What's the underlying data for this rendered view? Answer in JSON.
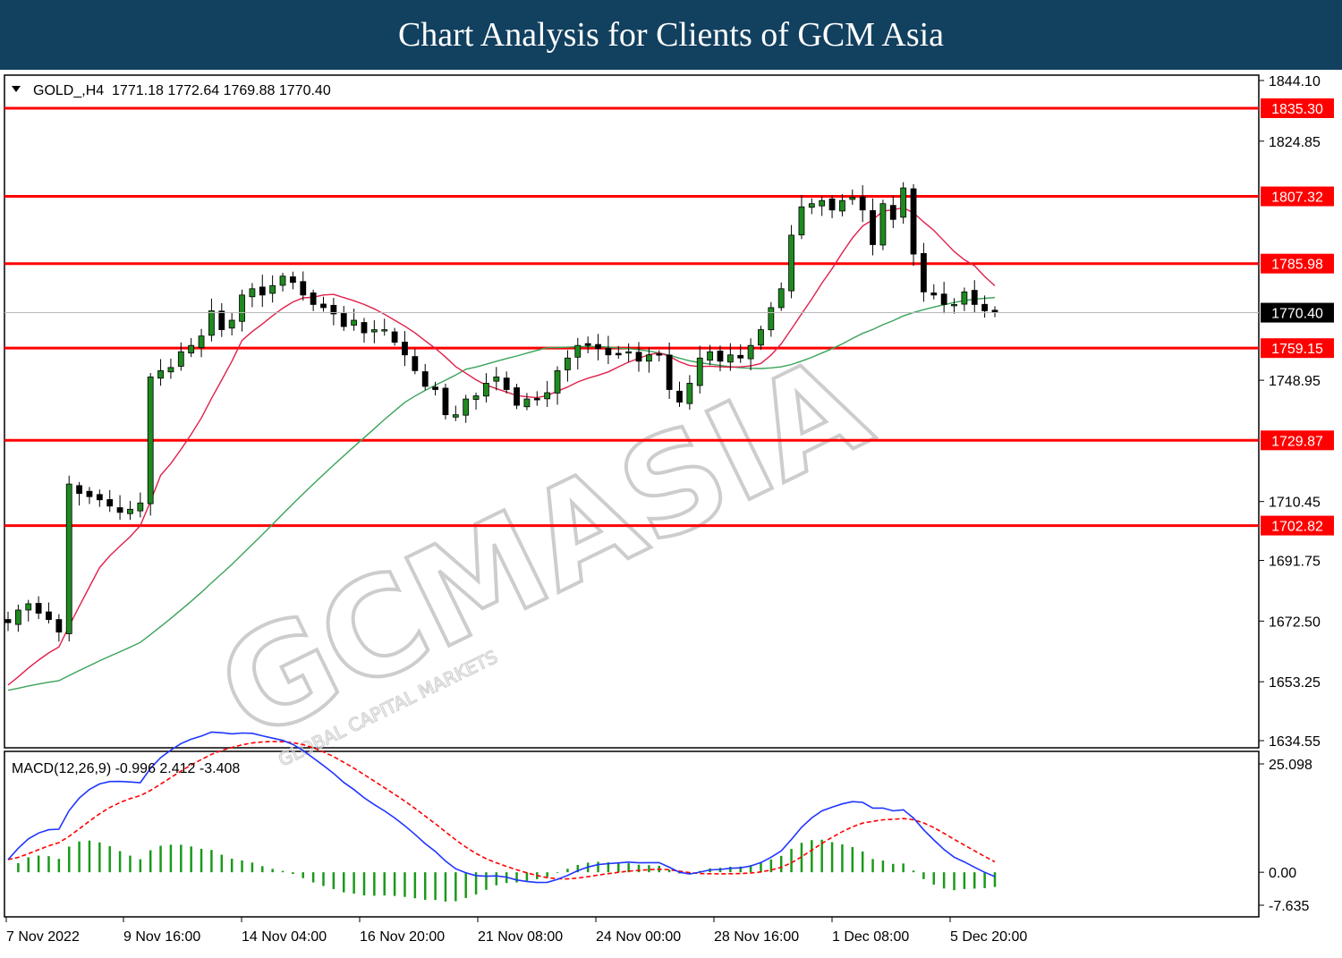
{
  "banner": {
    "title": "Chart Analysis for Clients of GCM Asia"
  },
  "watermark": {
    "main": "GCMASIA",
    "sub": "GLOBAL CAPITAL MARKETS"
  },
  "chart_data": [
    {
      "type": "candlestick",
      "symbol_info": "GOLD_,H4  1771.18 1772.64 1769.88 1770.40",
      "ohlc": {
        "open": 1771.18,
        "high": 1772.64,
        "low": 1769.88,
        "close": 1770.4
      },
      "last_price": "1770.40",
      "ylim": [
        1634.55,
        1844.1
      ],
      "y_ticks": [
        "1844.10",
        "1824.85",
        "1748.95",
        "1710.45",
        "1691.75",
        "1672.50",
        "1653.25",
        "1634.55"
      ],
      "x_ticks": [
        "7 Nov 2022",
        "9 Nov 16:00",
        "14 Nov 04:00",
        "16 Nov 20:00",
        "21 Nov 08:00",
        "24 Nov 00:00",
        "28 Nov 16:00",
        "1 Dec 08:00",
        "5 Dec 20:00"
      ],
      "levels": [
        "1835.30",
        "1807.32",
        "1785.98",
        "1759.15",
        "1729.87",
        "1702.82"
      ],
      "closes": [
        1672,
        1676,
        1678,
        1675,
        1673,
        1669,
        1716,
        1713,
        1712,
        1711,
        1709,
        1707,
        1708,
        1710,
        1750,
        1752,
        1753,
        1758,
        1760,
        1763,
        1771,
        1765,
        1768,
        1776,
        1778,
        1776,
        1779,
        1782,
        1780,
        1776,
        1773,
        1772,
        1770,
        1766,
        1768,
        1764,
        1765,
        1765,
        1761,
        1757,
        1752,
        1747,
        1746,
        1738,
        1738,
        1743,
        1744,
        1748,
        1750,
        1746,
        1741,
        1743,
        1743,
        1745,
        1752,
        1756,
        1760,
        1760,
        1759,
        1757,
        1757,
        1758,
        1755,
        1757,
        1757,
        1746,
        1742,
        1748,
        1756,
        1758,
        1755,
        1757,
        1756,
        1760,
        1765,
        1772,
        1778,
        1795,
        1804,
        1805,
        1806,
        1803,
        1806,
        1807,
        1803,
        1792,
        1805,
        1800,
        1810,
        1789,
        1777,
        1776,
        1773,
        1773,
        1777,
        1773,
        1771,
        1770.4
      ],
      "ma_fast_label": "",
      "ma_slow_label": ""
    },
    {
      "type": "macd",
      "label": "MACD(12,26,9) -0.996 2.412 -3.408",
      "macd": -0.996,
      "signal": 2.412,
      "histogram": -3.408,
      "ylim": [
        -7.635,
        25.098
      ],
      "y_ticks": [
        "25.098",
        "0.00",
        "-7.635"
      ]
    }
  ],
  "colors": {
    "banner": "#12405f",
    "level_line": "#ff0000",
    "bull": "#1f8a1f",
    "ma_fast": "#e0204a",
    "ma_slow": "#3aa35a",
    "macd_line": "#1f35ff",
    "signal_line": "#ff0000",
    "hist": "#1a9a1a"
  }
}
